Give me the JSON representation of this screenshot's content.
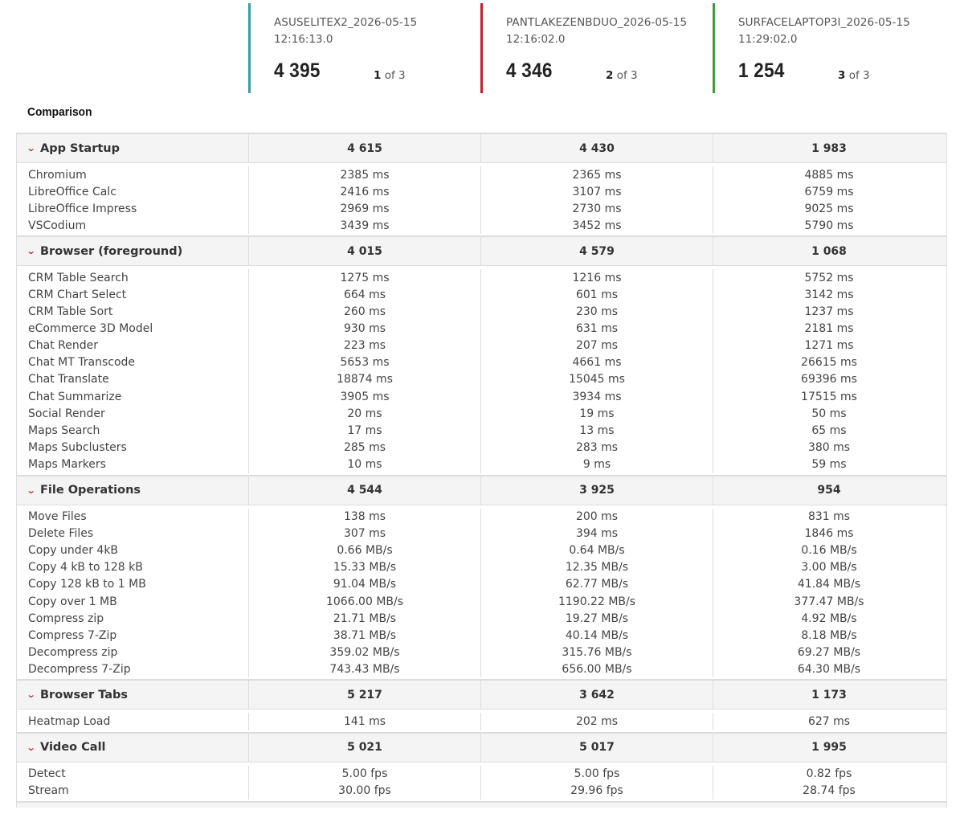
{
  "devices": [
    {
      "name": "ASUSELITEX2_2026-05-15",
      "time": "12:16:13.0",
      "score": "4 395",
      "rank_num": "1",
      "rank_of": " of 3",
      "color": "#3a9ca6"
    },
    {
      "name": "PANTLAKEZENBDUO_2026-05-15",
      "time": "12:16:02.0",
      "score": "4 346",
      "rank_num": "2",
      "rank_of": " of 3",
      "color": "#c41e2e"
    },
    {
      "name": "SURFACELAPTOP3I_2026-05-15",
      "time": "11:29:02.0",
      "score": "1 254",
      "rank_num": "3",
      "rank_of": " of 3",
      "color": "#3f9c3f"
    }
  ],
  "comparison": {
    "title": "Comparison",
    "chevron_icon": "chevron-down-icon",
    "sections": [
      {
        "label": "App Startup",
        "scores": [
          "4 615",
          "4 430",
          "1 983"
        ],
        "rows": [
          {
            "label": "Chromium",
            "values": [
              "2385 ms",
              "2365 ms",
              "4885 ms"
            ]
          },
          {
            "label": "LibreOffice Calc",
            "values": [
              "2416 ms",
              "3107 ms",
              "6759 ms"
            ]
          },
          {
            "label": "LibreOffice Impress",
            "values": [
              "2969 ms",
              "2730 ms",
              "9025 ms"
            ]
          },
          {
            "label": "VSCodium",
            "values": [
              "3439 ms",
              "3452 ms",
              "5790 ms"
            ]
          }
        ]
      },
      {
        "label": "Browser (foreground)",
        "scores": [
          "4 015",
          "4 579",
          "1 068"
        ],
        "rows": [
          {
            "label": "CRM Table Search",
            "values": [
              "1275 ms",
              "1216 ms",
              "5752 ms"
            ]
          },
          {
            "label": "CRM Chart Select",
            "values": [
              "664 ms",
              "601 ms",
              "3142 ms"
            ]
          },
          {
            "label": "CRM Table Sort",
            "values": [
              "260 ms",
              "230 ms",
              "1237 ms"
            ]
          },
          {
            "label": "eCommerce 3D Model",
            "values": [
              "930 ms",
              "631 ms",
              "2181 ms"
            ]
          },
          {
            "label": "Chat Render",
            "values": [
              "223 ms",
              "207 ms",
              "1271 ms"
            ]
          },
          {
            "label": "Chat MT Transcode",
            "values": [
              "5653 ms",
              "4661 ms",
              "26615 ms"
            ]
          },
          {
            "label": "Chat Translate",
            "values": [
              "18874 ms",
              "15045 ms",
              "69396 ms"
            ]
          },
          {
            "label": "Chat Summarize",
            "values": [
              "3905 ms",
              "3934 ms",
              "17515 ms"
            ]
          },
          {
            "label": "Social Render",
            "values": [
              "20 ms",
              "19 ms",
              "50 ms"
            ]
          },
          {
            "label": "Maps Search",
            "values": [
              "17 ms",
              "13 ms",
              "65 ms"
            ]
          },
          {
            "label": "Maps Subclusters",
            "values": [
              "285 ms",
              "283 ms",
              "380 ms"
            ]
          },
          {
            "label": "Maps Markers",
            "values": [
              "10 ms",
              "9 ms",
              "59 ms"
            ]
          }
        ]
      },
      {
        "label": "File Operations",
        "scores": [
          "4 544",
          "3 925",
          "954"
        ],
        "rows": [
          {
            "label": "Move Files",
            "values": [
              "138 ms",
              "200 ms",
              "831 ms"
            ]
          },
          {
            "label": "Delete Files",
            "values": [
              "307 ms",
              "394 ms",
              "1846 ms"
            ]
          },
          {
            "label": "Copy under 4kB",
            "values": [
              "0.66 MB/s",
              "0.64 MB/s",
              "0.16 MB/s"
            ]
          },
          {
            "label": "Copy 4 kB to 128 kB",
            "values": [
              "15.33 MB/s",
              "12.35 MB/s",
              "3.00 MB/s"
            ]
          },
          {
            "label": "Copy 128 kB to 1 MB",
            "values": [
              "91.04 MB/s",
              "62.77 MB/s",
              "41.84 MB/s"
            ]
          },
          {
            "label": "Copy over 1 MB",
            "values": [
              "1066.00 MB/s",
              "1190.22 MB/s",
              "377.47 MB/s"
            ]
          },
          {
            "label": "Compress zip",
            "values": [
              "21.71 MB/s",
              "19.27 MB/s",
              "4.92 MB/s"
            ]
          },
          {
            "label": "Compress 7-Zip",
            "values": [
              "38.71 MB/s",
              "40.14 MB/s",
              "8.18 MB/s"
            ]
          },
          {
            "label": "Decompress zip",
            "values": [
              "359.02 MB/s",
              "315.76 MB/s",
              "69.27 MB/s"
            ]
          },
          {
            "label": "Decompress 7-Zip",
            "values": [
              "743.43 MB/s",
              "656.00 MB/s",
              "64.30 MB/s"
            ]
          }
        ]
      },
      {
        "label": "Browser Tabs",
        "scores": [
          "5 217",
          "3 642",
          "1 173"
        ],
        "rows": [
          {
            "label": "Heatmap Load",
            "values": [
              "141 ms",
              "202 ms",
              "627 ms"
            ]
          }
        ]
      },
      {
        "label": "Video Call",
        "scores": [
          "5 021",
          "5 017",
          "1 995"
        ],
        "rows": [
          {
            "label": "Detect",
            "values": [
              "5.00 fps",
              "5.00 fps",
              "0.82 fps"
            ]
          },
          {
            "label": "Stream",
            "values": [
              "30.00 fps",
              "29.96 fps",
              "28.74 fps"
            ]
          }
        ]
      }
    ]
  }
}
